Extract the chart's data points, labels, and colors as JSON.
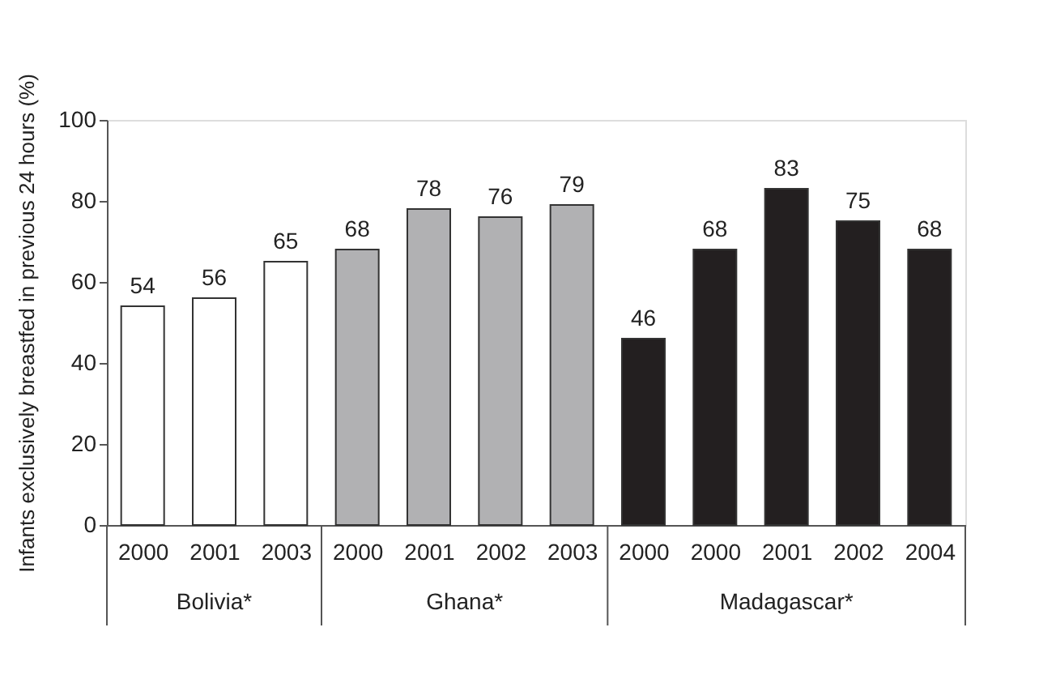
{
  "chart_data": {
    "type": "bar",
    "ylabel": "Infants exclusively breastfed in previous 24 hours (%)",
    "categories": [
      "2000",
      "2001",
      "2003",
      "2000",
      "2001",
      "2002",
      "2003",
      "2000",
      "2000",
      "2001",
      "2002",
      "2004"
    ],
    "series": [
      {
        "name": "Bolivia*",
        "color": "#ffffff",
        "values": [
          54,
          56,
          65,
          null,
          null,
          null,
          null,
          null,
          null,
          null,
          null,
          null
        ]
      },
      {
        "name": "Ghana*",
        "color": "#b1b1b3",
        "values": [
          null,
          null,
          null,
          68,
          78,
          76,
          79,
          null,
          null,
          null,
          null,
          null
        ]
      },
      {
        "name": "Madagascar*",
        "color": "#231f20",
        "values": [
          null,
          null,
          null,
          null,
          null,
          null,
          null,
          46,
          68,
          83,
          75,
          68
        ]
      }
    ],
    "ylim": [
      0,
      100
    ],
    "yticks": [
      0,
      20,
      40,
      60,
      80,
      100
    ],
    "data_labels": true,
    "grid": false
  }
}
